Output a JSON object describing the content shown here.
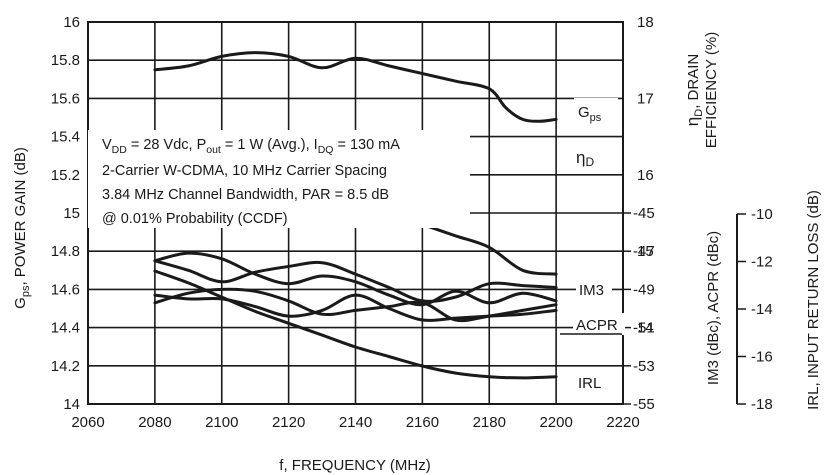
{
  "chart_data": {
    "type": "line",
    "xlabel": "f, FREQUENCY (MHz)",
    "x_ticks": [
      "2060",
      "2080",
      "2100",
      "2120",
      "2140",
      "2160",
      "2180",
      "2200",
      "2220"
    ],
    "xlim": [
      2060,
      2220
    ],
    "y_left": {
      "label": "G",
      "label_sub": "ps",
      "label_rest": ", POWER GAIN (dB)",
      "ticks": [
        "14",
        "14.2",
        "14.4",
        "14.6",
        "14.8",
        "15",
        "15.2",
        "15.4",
        "15.6",
        "15.8",
        "16"
      ],
      "lim": [
        14,
        16
      ]
    },
    "y_right_upper": {
      "label_line1_greek": "η",
      "label_line1_sub": "D",
      "label_line1_rest": ", DRAIN",
      "label_line2": "EFFICIENCY (%)",
      "ticks": [
        "14",
        "15",
        "16",
        "17",
        "18"
      ],
      "lim": [
        13,
        18
      ]
    },
    "y_right_lower": {
      "label": "IM3 (dBc), ACPR (dBc)",
      "ticks": [
        "-45",
        "-47",
        "-49",
        "-51",
        "-53",
        "-55"
      ],
      "lim": [
        -55,
        -45
      ]
    },
    "y_far_right": {
      "label": "IRL, INPUT RETURN LOSS (dB)",
      "ticks": [
        "-10",
        "-12",
        "-14",
        "-16",
        "-18"
      ],
      "lim": [
        -18,
        -10
      ]
    },
    "annotation": {
      "line1": {
        "a": "V",
        "a_sub": "DD",
        "b": " = 28 Vdc, P",
        "b_sub": "out",
        "c": " = 1 W (Avg.), I",
        "c_sub": "DQ",
        "d": " = 130 mA"
      },
      "line2": "2-Carrier W-CDMA, 10 MHz Carrier Spacing",
      "line3": "3.84 MHz Channel Bandwidth, PAR = 8.5 dB",
      "line4": "@ 0.01% Probability (CCDF)"
    },
    "curve_labels": {
      "gps": {
        "main": "G",
        "sub": "ps"
      },
      "eta": {
        "main": "η",
        "sub": "D"
      },
      "im3": "IM3",
      "acpr": "ACPR",
      "irl": "IRL"
    },
    "series": [
      {
        "name": "Gps",
        "axis": "left",
        "x": [
          2080,
          2090,
          2100,
          2110,
          2120,
          2130,
          2140,
          2150,
          2160,
          2170,
          2180,
          2185,
          2190,
          2195,
          2200
        ],
        "y": [
          15.75,
          15.77,
          15.82,
          15.84,
          15.82,
          15.76,
          15.81,
          15.77,
          15.73,
          15.69,
          15.65,
          15.55,
          15.49,
          15.48,
          15.49
        ]
      },
      {
        "name": "ηD",
        "axis": "right_upper",
        "x": [
          2080,
          2090,
          2100,
          2110,
          2120,
          2130,
          2140,
          2150,
          2160,
          2170,
          2180,
          2190,
          2200
        ],
        "y": [
          16.15,
          16.2,
          16.1,
          16.0,
          15.9,
          15.75,
          15.65,
          15.5,
          15.35,
          15.2,
          15.05,
          14.75,
          14.7
        ]
      },
      {
        "name": "IM3",
        "axis": "right_lower",
        "x": [
          2080,
          2090,
          2100,
          2110,
          2120,
          2130,
          2140,
          2150,
          2160,
          2170,
          2180,
          2190,
          2200
        ],
        "y": [
          -47.5,
          -47.1,
          -47.4,
          -48.2,
          -48.7,
          -48.3,
          -48.6,
          -49.3,
          -49.8,
          -49.1,
          -49.7,
          -49.2,
          -49.6
        ]
      },
      {
        "name": "IM3",
        "axis": "right_lower",
        "x": [
          2080,
          2090,
          2100,
          2110,
          2120,
          2130,
          2140,
          2150,
          2160,
          2170,
          2180,
          2190,
          2200
        ],
        "y": [
          -47.5,
          -48.0,
          -48.6,
          -48.1,
          -47.8,
          -47.6,
          -48.2,
          -48.9,
          -49.6,
          -49.4,
          -48.7,
          -48.8,
          -48.9
        ]
      },
      {
        "name": "ACPR",
        "axis": "right_lower",
        "x": [
          2080,
          2090,
          2100,
          2110,
          2120,
          2130,
          2140,
          2150,
          2160,
          2170,
          2180,
          2190,
          2200
        ],
        "y": [
          -49.3,
          -49.5,
          -49.5,
          -49.9,
          -50.4,
          -50.1,
          -49.3,
          -50.0,
          -50.6,
          -50.5,
          -50.4,
          -50.3,
          -50.1
        ]
      },
      {
        "name": "ACPR",
        "axis": "right_lower",
        "x": [
          2080,
          2090,
          2100,
          2110,
          2120,
          2130,
          2140,
          2150,
          2160,
          2170,
          2180,
          2190,
          2200
        ],
        "y": [
          -49.7,
          -49.2,
          -49.0,
          -49.1,
          -49.6,
          -50.3,
          -50.1,
          -49.9,
          -49.7,
          -50.6,
          -50.4,
          -50.1,
          -49.8
        ]
      },
      {
        "name": "IRL",
        "axis": "far_right",
        "x": [
          2080,
          2090,
          2100,
          2110,
          2120,
          2130,
          2140,
          2150,
          2160,
          2170,
          2180,
          2190,
          2200
        ],
        "y": [
          -12.4,
          -12.9,
          -13.5,
          -14.1,
          -14.6,
          -15.1,
          -15.6,
          -16.0,
          -16.4,
          -16.7,
          -16.85,
          -16.9,
          -16.85
        ]
      }
    ]
  }
}
